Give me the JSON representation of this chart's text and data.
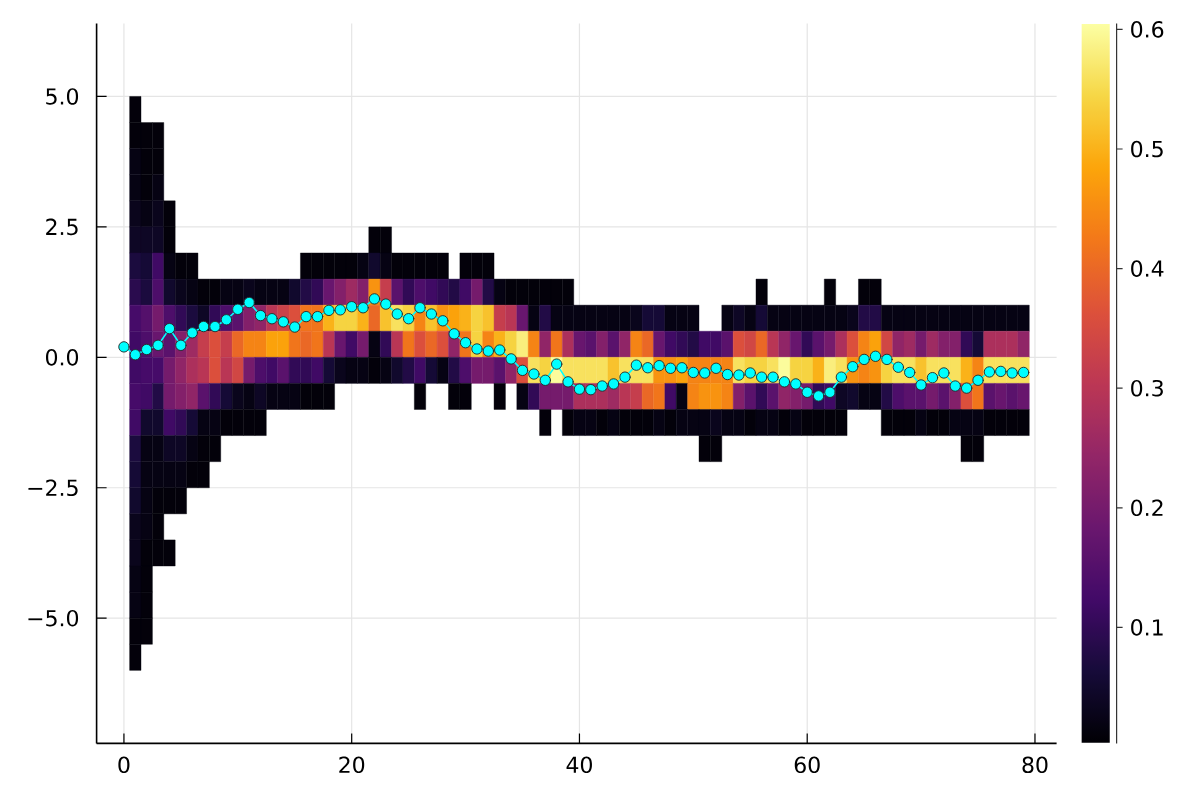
{
  "chart_data": {
    "type": "heatmap",
    "x": [
      1,
      2,
      3,
      4,
      5,
      6,
      7,
      8,
      9,
      10,
      11,
      12,
      13,
      14,
      15,
      16,
      17,
      18,
      19,
      20,
      21,
      22,
      23,
      24,
      25,
      26,
      27,
      28,
      29,
      30,
      31,
      32,
      33,
      34,
      35,
      36,
      37,
      38,
      39,
      40,
      41,
      42,
      43,
      44,
      45,
      46,
      47,
      48,
      49,
      50,
      51,
      52,
      53,
      54,
      55,
      56,
      57,
      58,
      59,
      60,
      61,
      62,
      63,
      64,
      65,
      66,
      67,
      68,
      69,
      70,
      71,
      72,
      73,
      74,
      75,
      76,
      77,
      78,
      79
    ],
    "y": [
      4.75,
      4.25,
      3.75,
      3.25,
      2.75,
      2.25,
      1.75,
      1.25,
      0.75,
      0.25,
      -0.25,
      -0.75,
      -1.25,
      -1.75,
      -2.25,
      -2.75,
      -3.25,
      -3.75,
      -4.25,
      -4.75,
      -5.25,
      -5.75
    ],
    "cells": [
      [
        0.01,
        null,
        null,
        null,
        null,
        null,
        null,
        null,
        null,
        null,
        null,
        null,
        null,
        null,
        null,
        null,
        null,
        null,
        null,
        null,
        null,
        null,
        null,
        null,
        null,
        null,
        null,
        null,
        null,
        null,
        null,
        null,
        null,
        null,
        null,
        null,
        null,
        null,
        null,
        null,
        null,
        null,
        null,
        null,
        null,
        null,
        null,
        null,
        null,
        null,
        null,
        null,
        null,
        null,
        null,
        null,
        null,
        null,
        null,
        null,
        null,
        null,
        null,
        null,
        null,
        null,
        null,
        null,
        null,
        null,
        null,
        null,
        null,
        null,
        null,
        null,
        null,
        null,
        null
      ],
      [
        0.01,
        0.01,
        0.01,
        null,
        null,
        null,
        null,
        null,
        null,
        null,
        null,
        null,
        null,
        null,
        null,
        null,
        null,
        null,
        null,
        null,
        null,
        null,
        null,
        null,
        null,
        null,
        null,
        null,
        null,
        null,
        null,
        null,
        null,
        null,
        null,
        null,
        null,
        null,
        null,
        null,
        null,
        null,
        null,
        null,
        null,
        null,
        null,
        null,
        null,
        null,
        null,
        null,
        null,
        null,
        null,
        null,
        null,
        null,
        null,
        null,
        null,
        null,
        null,
        null,
        null,
        null,
        null,
        null,
        null,
        null,
        null,
        null,
        null,
        null,
        null,
        null,
        null,
        null,
        null
      ],
      [
        0.02,
        0.01,
        0.01,
        null,
        null,
        null,
        null,
        null,
        null,
        null,
        null,
        null,
        null,
        null,
        null,
        null,
        null,
        null,
        null,
        null,
        null,
        null,
        null,
        null,
        null,
        null,
        null,
        null,
        null,
        null,
        null,
        null,
        null,
        null,
        null,
        null,
        null,
        null,
        null,
        null,
        null,
        null,
        null,
        null,
        null,
        null,
        null,
        null,
        null,
        null,
        null,
        null,
        null,
        null,
        null,
        null,
        null,
        null,
        null,
        null,
        null,
        null,
        null,
        null,
        null,
        null,
        null,
        null,
        null,
        null,
        null,
        null,
        null,
        null,
        null,
        null,
        null,
        null,
        null
      ],
      [
        0.02,
        0.01,
        0.02,
        null,
        null,
        null,
        null,
        null,
        null,
        null,
        null,
        null,
        null,
        null,
        null,
        null,
        null,
        null,
        null,
        null,
        null,
        null,
        null,
        null,
        null,
        null,
        null,
        null,
        null,
        null,
        null,
        null,
        null,
        null,
        null,
        null,
        null,
        null,
        null,
        null,
        null,
        null,
        null,
        null,
        null,
        null,
        null,
        null,
        null,
        null,
        null,
        null,
        null,
        null,
        null,
        null,
        null,
        null,
        null,
        null,
        null,
        null,
        null,
        null,
        null,
        null,
        null,
        null,
        null,
        null,
        null,
        null,
        null,
        null,
        null,
        null,
        null,
        null,
        null
      ],
      [
        0.03,
        0.02,
        0.03,
        0.01,
        null,
        null,
        null,
        null,
        null,
        null,
        null,
        null,
        null,
        null,
        null,
        null,
        null,
        null,
        null,
        null,
        null,
        null,
        null,
        null,
        null,
        null,
        null,
        null,
        null,
        null,
        null,
        null,
        null,
        null,
        null,
        null,
        null,
        null,
        null,
        null,
        null,
        null,
        null,
        null,
        null,
        null,
        null,
        null,
        null,
        null,
        null,
        null,
        null,
        null,
        null,
        null,
        null,
        null,
        null,
        null,
        null,
        null,
        null,
        null,
        null,
        null,
        null,
        null,
        null,
        null,
        null,
        null,
        null,
        null,
        null,
        null,
        null,
        null,
        null
      ],
      [
        0.04,
        0.04,
        0.04,
        0.01,
        null,
        null,
        null,
        null,
        null,
        null,
        null,
        null,
        null,
        null,
        null,
        null,
        null,
        null,
        null,
        null,
        null,
        0.01,
        0.01,
        null,
        null,
        null,
        null,
        null,
        null,
        null,
        null,
        null,
        null,
        null,
        null,
        null,
        null,
        null,
        null,
        null,
        null,
        null,
        null,
        null,
        null,
        null,
        null,
        null,
        null,
        null,
        null,
        null,
        null,
        null,
        null,
        null,
        null,
        null,
        null,
        null,
        null,
        null,
        null,
        null,
        null,
        null,
        null,
        null,
        null,
        null,
        null,
        null,
        null,
        null,
        null,
        null,
        null,
        null,
        null
      ],
      [
        0.07,
        0.06,
        0.12,
        0.02,
        0.01,
        0.01,
        null,
        null,
        null,
        null,
        null,
        null,
        null,
        null,
        null,
        0.01,
        0.01,
        0.01,
        0.01,
        0.01,
        0.02,
        0.05,
        0.02,
        0.01,
        0.01,
        0.01,
        0.01,
        0.01,
        null,
        0.01,
        0.01,
        0.01,
        null,
        null,
        null,
        null,
        null,
        null,
        null,
        null,
        null,
        null,
        null,
        null,
        null,
        null,
        null,
        null,
        null,
        null,
        null,
        null,
        null,
        null,
        null,
        null,
        null,
        null,
        null,
        null,
        null,
        null,
        null,
        null,
        null,
        null,
        null,
        null,
        null,
        null,
        null,
        null,
        null,
        null,
        null,
        null,
        null,
        null,
        null
      ],
      [
        0.09,
        0.07,
        0.14,
        0.05,
        0.03,
        0.02,
        0.01,
        0.01,
        0.02,
        0.02,
        0.03,
        0.02,
        0.02,
        0.02,
        0.05,
        0.08,
        0.1,
        0.18,
        0.22,
        0.26,
        0.22,
        0.46,
        0.32,
        0.16,
        0.1,
        0.14,
        0.12,
        0.1,
        0.08,
        0.12,
        0.2,
        0.08,
        0.02,
        0.01,
        0.01,
        0.01,
        0.01,
        0.01,
        0.01,
        null,
        null,
        null,
        null,
        null,
        null,
        null,
        null,
        null,
        null,
        null,
        null,
        null,
        null,
        null,
        null,
        0.01,
        null,
        null,
        null,
        null,
        null,
        0.01,
        null,
        null,
        0.01,
        0.01,
        null,
        null,
        null,
        null,
        null,
        null,
        null,
        null,
        null,
        null,
        null,
        null,
        null
      ],
      [
        0.13,
        0.15,
        0.2,
        0.14,
        0.1,
        0.07,
        0.04,
        0.1,
        0.14,
        0.16,
        0.22,
        0.24,
        0.3,
        0.33,
        0.36,
        0.42,
        0.42,
        0.5,
        0.54,
        0.54,
        0.5,
        0.4,
        0.52,
        0.56,
        0.54,
        0.44,
        0.52,
        0.46,
        0.48,
        0.5,
        0.54,
        0.52,
        0.32,
        0.3,
        0.18,
        0.02,
        0.08,
        0.02,
        0.02,
        0.02,
        0.02,
        0.02,
        0.02,
        0.02,
        0.03,
        0.06,
        0.06,
        0.02,
        0.02,
        0.02,
        null,
        null,
        0.02,
        0.04,
        0.02,
        0.06,
        0.02,
        0.02,
        0.02,
        0.02,
        0.02,
        0.02,
        0.02,
        0.03,
        0.08,
        0.08,
        0.02,
        0.02,
        0.02,
        0.02,
        0.02,
        0.02,
        0.02,
        0.02,
        0.02,
        0.02,
        0.02,
        0.02,
        0.02
      ],
      [
        0.12,
        0.14,
        0.18,
        0.16,
        0.22,
        0.26,
        0.32,
        0.36,
        0.32,
        0.4,
        0.44,
        0.44,
        0.48,
        0.48,
        0.42,
        0.4,
        0.42,
        0.3,
        0.18,
        0.12,
        0.2,
        0.02,
        0.1,
        0.3,
        0.42,
        0.36,
        0.4,
        0.36,
        0.24,
        0.42,
        0.54,
        0.44,
        0.5,
        0.54,
        0.58,
        0.44,
        0.24,
        0.42,
        0.28,
        0.18,
        0.16,
        0.22,
        0.16,
        0.24,
        0.44,
        0.4,
        0.18,
        0.12,
        0.1,
        0.08,
        0.12,
        0.12,
        0.16,
        0.36,
        0.34,
        0.4,
        0.3,
        0.24,
        0.18,
        0.1,
        0.16,
        0.2,
        0.28,
        0.36,
        0.44,
        0.48,
        0.34,
        0.24,
        0.26,
        0.2,
        0.26,
        0.22,
        0.22,
        0.1,
        0.06,
        0.28,
        0.28,
        0.28,
        0.24
      ],
      [
        0.12,
        0.13,
        0.13,
        0.2,
        0.24,
        0.28,
        0.3,
        0.36,
        0.3,
        0.34,
        0.2,
        0.14,
        0.12,
        0.16,
        0.1,
        0.1,
        0.12,
        0.06,
        0.03,
        0.02,
        0.02,
        0.01,
        0.02,
        0.05,
        0.08,
        0.12,
        0.06,
        0.02,
        0.08,
        0.14,
        0.2,
        0.2,
        0.16,
        0.24,
        0.36,
        0.56,
        0.54,
        0.6,
        0.56,
        0.56,
        0.56,
        0.56,
        0.52,
        0.56,
        0.56,
        0.56,
        0.46,
        0.46,
        0.48,
        0.44,
        0.44,
        0.44,
        0.44,
        0.56,
        0.54,
        0.54,
        0.56,
        0.6,
        0.54,
        0.54,
        0.5,
        0.58,
        0.56,
        0.46,
        0.44,
        0.46,
        0.54,
        0.56,
        0.56,
        0.52,
        0.56,
        0.56,
        0.56,
        0.5,
        0.44,
        0.56,
        0.56,
        0.56,
        0.56
      ],
      [
        0.13,
        0.12,
        0.08,
        0.2,
        0.22,
        0.24,
        0.16,
        0.1,
        0.06,
        0.03,
        0.02,
        0.04,
        0.02,
        0.02,
        0.02,
        0.01,
        0.01,
        0.01,
        null,
        null,
        null,
        null,
        null,
        null,
        null,
        0.01,
        null,
        null,
        0.01,
        0.01,
        null,
        null,
        0.01,
        null,
        0.02,
        0.1,
        0.2,
        0.2,
        0.2,
        0.28,
        0.28,
        0.28,
        0.26,
        0.3,
        0.32,
        0.4,
        0.42,
        0.12,
        0.02,
        0.44,
        0.46,
        0.46,
        0.44,
        0.22,
        0.16,
        0.1,
        0.16,
        0.24,
        0.22,
        0.2,
        0.1,
        0.12,
        0.04,
        0.05,
        0.02,
        0.02,
        0.08,
        0.14,
        0.16,
        0.16,
        0.2,
        0.16,
        0.22,
        0.36,
        0.42,
        0.16,
        0.18,
        0.16,
        0.18
      ],
      [
        0.12,
        0.05,
        0.05,
        0.12,
        0.1,
        0.06,
        0.02,
        0.02,
        0.01,
        0.01,
        0.01,
        0.01,
        null,
        null,
        null,
        null,
        null,
        null,
        null,
        null,
        null,
        null,
        null,
        null,
        null,
        null,
        null,
        null,
        null,
        null,
        null,
        null,
        null,
        null,
        null,
        null,
        0.01,
        null,
        0.01,
        0.02,
        0.02,
        0.01,
        0.02,
        0.01,
        0.01,
        0.01,
        0.02,
        0.01,
        0.02,
        0.02,
        0.02,
        0.03,
        0.02,
        0.02,
        0.01,
        0.02,
        0.02,
        0.01,
        0.02,
        0.01,
        0.01,
        0.01,
        0.01,
        null,
        null,
        null,
        0.01,
        0.01,
        0.01,
        0.02,
        0.01,
        0.01,
        0.02,
        0.02,
        0.02,
        0.01,
        0.01,
        0.01,
        0.01
      ],
      [
        0.07,
        0.02,
        0.02,
        0.04,
        0.04,
        0.02,
        0.01,
        0.01,
        null,
        null,
        null,
        null,
        null,
        null,
        null,
        null,
        null,
        null,
        null,
        null,
        null,
        null,
        null,
        null,
        null,
        null,
        null,
        null,
        null,
        null,
        null,
        null,
        null,
        null,
        null,
        null,
        null,
        null,
        null,
        null,
        null,
        null,
        null,
        null,
        null,
        null,
        null,
        null,
        null,
        null,
        0.01,
        0.01,
        null,
        null,
        null,
        null,
        null,
        null,
        null,
        null,
        null,
        null,
        null,
        null,
        null,
        null,
        null,
        null,
        null,
        null,
        null,
        null,
        null,
        0.01,
        0.01,
        null,
        null,
        null,
        null
      ],
      [
        0.06,
        0.02,
        0.02,
        0.02,
        0.02,
        0.01,
        0.01,
        null,
        null,
        null,
        null,
        null,
        null,
        null,
        null,
        null,
        null,
        null,
        null,
        null,
        null,
        null,
        null,
        null,
        null,
        null,
        null,
        null,
        null,
        null,
        null,
        null,
        null,
        null,
        null,
        null,
        null,
        null,
        null,
        null,
        null,
        null,
        null,
        null,
        null,
        null,
        null,
        null,
        null,
        null,
        null,
        null,
        null,
        null,
        null,
        null,
        null,
        null,
        null,
        null,
        null,
        null,
        null,
        null,
        null,
        null,
        null,
        null,
        null,
        null,
        null,
        null,
        null,
        null,
        null,
        null,
        null,
        null,
        null
      ],
      [
        0.05,
        0.02,
        0.01,
        0.01,
        0.01,
        null,
        null,
        null,
        null,
        null,
        null,
        null,
        null,
        null,
        null,
        null,
        null,
        null,
        null,
        null,
        null,
        null,
        null,
        null,
        null,
        null,
        null,
        null,
        null,
        null,
        null,
        null,
        null,
        null,
        null,
        null,
        null,
        null,
        null,
        null,
        null,
        null,
        null,
        null,
        null,
        null,
        null,
        null,
        null,
        null,
        null,
        null,
        null,
        null,
        null,
        null,
        null,
        null,
        null,
        null,
        null,
        null,
        null,
        null,
        null,
        null,
        null,
        null,
        null,
        null,
        null,
        null,
        null,
        null,
        null,
        null,
        null,
        null,
        null
      ],
      [
        0.03,
        0.02,
        0.01,
        null,
        null,
        null,
        null,
        null,
        null,
        null,
        null,
        null,
        null,
        null,
        null,
        null,
        null,
        null,
        null,
        null,
        null,
        null,
        null,
        null,
        null,
        null,
        null,
        null,
        null,
        null,
        null,
        null,
        null,
        null,
        null,
        null,
        null,
        null,
        null,
        null,
        null,
        null,
        null,
        null,
        null,
        null,
        null,
        null,
        null,
        null,
        null,
        null,
        null,
        null,
        null,
        null,
        null,
        null,
        null,
        null,
        null,
        null,
        null,
        null,
        null,
        null,
        null,
        null,
        null,
        null,
        null,
        null,
        null,
        null,
        null,
        null,
        null,
        null,
        null
      ],
      [
        0.03,
        0.01,
        0.01,
        0.01,
        null,
        null,
        null,
        null,
        null,
        null,
        null,
        null,
        null,
        null,
        null,
        null,
        null,
        null,
        null,
        null,
        null,
        null,
        null,
        null,
        null,
        null,
        null,
        null,
        null,
        null,
        null,
        null,
        null,
        null,
        null,
        null,
        null,
        null,
        null,
        null,
        null,
        null,
        null,
        null,
        null,
        null,
        null,
        null,
        null,
        null,
        null,
        null,
        null,
        null,
        null,
        null,
        null,
        null,
        null,
        null,
        null,
        null,
        null,
        null,
        null,
        null,
        null,
        null,
        null,
        null,
        null,
        null,
        null,
        null,
        null,
        null,
        null,
        null,
        null
      ],
      [
        0.02,
        0.01,
        null,
        null,
        null,
        null,
        null,
        null,
        null,
        null,
        null,
        null,
        null,
        null,
        null,
        null,
        null,
        null,
        null,
        null,
        null,
        null,
        null,
        null,
        null,
        null,
        null,
        null,
        null,
        null,
        null,
        null,
        null,
        null,
        null,
        null,
        null,
        null,
        null,
        null,
        null,
        null,
        null,
        null,
        null,
        null,
        null,
        null,
        null,
        null,
        null,
        null,
        null,
        null,
        null,
        null,
        null,
        null,
        null,
        null,
        null,
        null,
        null,
        null,
        null,
        null,
        null,
        null,
        null,
        null,
        null,
        null,
        null,
        null,
        null,
        null,
        null,
        null,
        null
      ],
      [
        0.02,
        0.01,
        null,
        null,
        null,
        null,
        null,
        null,
        null,
        null,
        null,
        null,
        null,
        null,
        null,
        null,
        null,
        null,
        null,
        null,
        null,
        null,
        null,
        null,
        null,
        null,
        null,
        null,
        null,
        null,
        null,
        null,
        null,
        null,
        null,
        null,
        null,
        null,
        null,
        null,
        null,
        null,
        null,
        null,
        null,
        null,
        null,
        null,
        null,
        null,
        null,
        null,
        null,
        null,
        null,
        null,
        null,
        null,
        null,
        null,
        null,
        null,
        null,
        null,
        null,
        null,
        null,
        null,
        null,
        null,
        null,
        null,
        null,
        null,
        null,
        null,
        null,
        null,
        null
      ],
      [
        0.01,
        0.01,
        null,
        null,
        null,
        null,
        null,
        null,
        null,
        null,
        null,
        null,
        null,
        null,
        null,
        null,
        null,
        null,
        null,
        null,
        null,
        null,
        null,
        null,
        null,
        null,
        null,
        null,
        null,
        null,
        null,
        null,
        null,
        null,
        null,
        null,
        null,
        null,
        null,
        null,
        null,
        null,
        null,
        null,
        null,
        null,
        null,
        null,
        null,
        null,
        null,
        null,
        null,
        null,
        null,
        null,
        null,
        null,
        null,
        null,
        null,
        null,
        null,
        null,
        null,
        null,
        null,
        null,
        null,
        null,
        null,
        null,
        null,
        null,
        null,
        null,
        null,
        null,
        null
      ],
      [
        0.01,
        null,
        null,
        null,
        null,
        null,
        null,
        null,
        null,
        null,
        null,
        null,
        null,
        null,
        null,
        null,
        null,
        null,
        null,
        null,
        null,
        null,
        null,
        null,
        null,
        null,
        null,
        null,
        null,
        null,
        null,
        null,
        null,
        null,
        null,
        null,
        null,
        null,
        null,
        null,
        null,
        null,
        null,
        null,
        null,
        null,
        null,
        null,
        null,
        null,
        null,
        null,
        null,
        null,
        null,
        null,
        null,
        null,
        null,
        null,
        null,
        null,
        null,
        null,
        null,
        null,
        null,
        null,
        null,
        null,
        null,
        null,
        null,
        null,
        null,
        null,
        null,
        null,
        null
      ]
    ],
    "clim": [
      0.003,
      0.605
    ],
    "cticks": [
      0.1,
      0.2,
      0.3,
      0.4,
      0.5,
      0.6
    ],
    "xlim": [
      -2.4,
      81.9
    ],
    "ylim": [
      -7.4,
      6.4
    ],
    "xticks": [
      0,
      20,
      40,
      60,
      80
    ],
    "yticks": [
      {
        "value": -5,
        "label": "−5.0"
      },
      {
        "value": -2.5,
        "label": "−2.5"
      },
      {
        "value": 0,
        "label": "0.0"
      },
      2.5,
      {
        "value": 5,
        "label": "5.0"
      }
    ],
    "grid": true,
    "series": [
      {
        "type": "line",
        "color": "#00ffff",
        "marker": "circle",
        "x": [
          0,
          1,
          2,
          3,
          4,
          5,
          6,
          7,
          8,
          9,
          10,
          11,
          12,
          13,
          14,
          15,
          16,
          17,
          18,
          19,
          20,
          21,
          22,
          23,
          24,
          25,
          26,
          27,
          28,
          29,
          30,
          31,
          32,
          33,
          34,
          35,
          36,
          37,
          38,
          39,
          40,
          41,
          42,
          43,
          44,
          45,
          46,
          47,
          48,
          49,
          50,
          51,
          52,
          53,
          54,
          55,
          56,
          57,
          58,
          59,
          60,
          61,
          62,
          63,
          64,
          65,
          66,
          67,
          68,
          69,
          70,
          71,
          72,
          73,
          74,
          75,
          76,
          77,
          78,
          79
        ],
        "values": [
          0.2,
          0.05,
          0.15,
          0.23,
          0.55,
          0.23,
          0.47,
          0.59,
          0.59,
          0.72,
          0.92,
          1.05,
          0.8,
          0.74,
          0.68,
          0.58,
          0.78,
          0.78,
          0.9,
          0.91,
          0.97,
          0.95,
          1.12,
          1.02,
          0.83,
          0.74,
          0.95,
          0.83,
          0.7,
          0.45,
          0.28,
          0.16,
          0.12,
          0.14,
          -0.03,
          -0.25,
          -0.32,
          -0.44,
          -0.13,
          -0.47,
          -0.61,
          -0.62,
          -0.55,
          -0.51,
          -0.38,
          -0.15,
          -0.2,
          -0.16,
          -0.21,
          -0.2,
          -0.29,
          -0.3,
          -0.21,
          -0.33,
          -0.34,
          -0.3,
          -0.38,
          -0.38,
          -0.47,
          -0.51,
          -0.67,
          -0.74,
          -0.67,
          -0.38,
          -0.18,
          -0.04,
          0.02,
          -0.04,
          -0.19,
          -0.29,
          -0.53,
          -0.39,
          -0.3,
          -0.55,
          -0.59,
          -0.44,
          -0.28,
          -0.27,
          -0.3,
          -0.29
        ]
      }
    ]
  }
}
